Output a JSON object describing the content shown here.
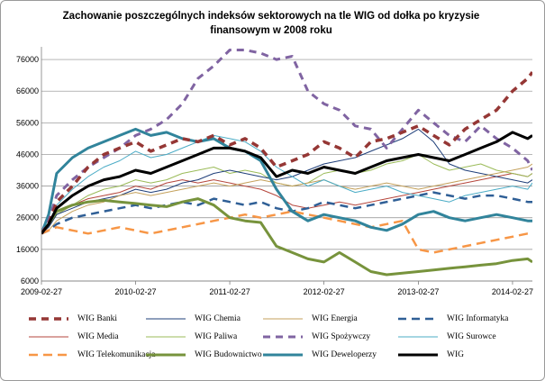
{
  "chart_data": {
    "type": "line",
    "title_lines": [
      "Zachowanie  poszczególnych  indeksów  sektorowych  na  tle WIG od dołka  po kryzysie",
      "finansowym  w 2008 roku"
    ],
    "xlabel": "",
    "ylabel": "",
    "x_ticks": [
      "2009-02-27",
      "2010-02-27",
      "2011-02-27",
      "2012-02-27",
      "2013-02-27",
      "2014-02-27"
    ],
    "x_range": [
      "2009-02-27",
      "2014-05-15"
    ],
    "y_ticks": [
      "6000",
      "16000",
      "26000",
      "36000",
      "46000",
      "56000",
      "66000",
      "76000"
    ],
    "ylim": [
      6000,
      80000
    ],
    "grid": "horizontal",
    "legend_position": "bottom",
    "x": [
      "2009-02-27",
      "2009-03-27",
      "2009-04-27",
      "2009-06-27",
      "2009-08-27",
      "2009-10-27",
      "2009-12-27",
      "2010-02-27",
      "2010-04-27",
      "2010-06-27",
      "2010-08-27",
      "2010-10-27",
      "2010-12-27",
      "2011-02-27",
      "2011-04-27",
      "2011-06-27",
      "2011-08-27",
      "2011-10-27",
      "2011-12-27",
      "2012-02-27",
      "2012-04-27",
      "2012-06-27",
      "2012-08-27",
      "2012-10-27",
      "2012-12-27",
      "2013-02-27",
      "2013-04-27",
      "2013-06-27",
      "2013-08-27",
      "2013-10-27",
      "2013-12-27",
      "2014-02-27",
      "2014-04-27",
      "2014-05-15"
    ],
    "series": [
      {
        "name": "WIG Banki",
        "color": "#953735",
        "width": 3.5,
        "dash": "8,6",
        "values": [
          21000,
          24000,
          31000,
          36000,
          42000,
          46000,
          48000,
          50000,
          47000,
          49000,
          51000,
          50000,
          52000,
          49000,
          51000,
          48000,
          42000,
          44000,
          46000,
          50000,
          48000,
          45000,
          50000,
          51000,
          53000,
          55000,
          52000,
          49000,
          54000,
          57000,
          60000,
          66000,
          70000,
          72000
        ]
      },
      {
        "name": "WIG Chemia",
        "color": "#1f3f7a",
        "width": 1,
        "dash": "",
        "values": [
          21000,
          23000,
          27000,
          29000,
          31000,
          32000,
          33000,
          35000,
          34000,
          35000,
          37000,
          38000,
          40000,
          41000,
          40000,
          39000,
          38000,
          39000,
          41000,
          43000,
          44000,
          45000,
          47000,
          49000,
          51000,
          54000,
          50000,
          43000,
          41000,
          40000,
          39000,
          38000,
          37000,
          38000
        ]
      },
      {
        "name": "WIG Energia",
        "color": "#c4a15c",
        "width": 1,
        "dash": "",
        "values": [
          21000,
          22000,
          25000,
          28000,
          30000,
          31000,
          33000,
          34000,
          33000,
          34000,
          35000,
          36000,
          37000,
          36000,
          37000,
          38000,
          37000,
          36000,
          37000,
          38000,
          36000,
          35000,
          36000,
          37000,
          36000,
          35000,
          36000,
          37000,
          38000,
          39000,
          40000,
          41000,
          42000,
          43000
        ]
      },
      {
        "name": "WIG Informatyka",
        "color": "#2f5f96",
        "width": 2.5,
        "dash": "9,6",
        "values": [
          21000,
          22000,
          24000,
          26000,
          27000,
          28000,
          29000,
          30000,
          29000,
          30000,
          31000,
          30000,
          32000,
          31000,
          30000,
          31000,
          29000,
          28000,
          29000,
          31000,
          30000,
          29000,
          30000,
          31000,
          32000,
          33000,
          34000,
          33000,
          32000,
          33000,
          33000,
          32000,
          31000,
          31000
        ]
      },
      {
        "name": "WIG Media",
        "color": "#b5463c",
        "width": 1,
        "dash": "",
        "values": [
          21000,
          23000,
          27000,
          30000,
          32000,
          33000,
          34000,
          36000,
          35000,
          37000,
          38000,
          37000,
          38000,
          37000,
          36000,
          35000,
          33000,
          30000,
          29000,
          30000,
          31000,
          30000,
          31000,
          32000,
          33000,
          34000,
          35000,
          36000,
          37000,
          38000,
          39000,
          40000,
          39000,
          40000
        ]
      },
      {
        "name": "WIG Paliwa",
        "color": "#9bbb59",
        "width": 1,
        "dash": "",
        "values": [
          21000,
          23000,
          27000,
          30000,
          33000,
          35000,
          36000,
          38000,
          37000,
          38000,
          40000,
          41000,
          42000,
          40000,
          41000,
          40000,
          37000,
          36000,
          37000,
          40000,
          41000,
          40000,
          41000,
          43000,
          44000,
          46000,
          43000,
          41000,
          42000,
          43000,
          41000,
          40000,
          39000,
          40000
        ]
      },
      {
        "name": "WIG Spożywczy",
        "color": "#8064a2",
        "width": 3,
        "dash": "8,6",
        "values": [
          21000,
          25000,
          33000,
          38000,
          42000,
          45000,
          48000,
          52000,
          54000,
          57000,
          62000,
          70000,
          74000,
          79000,
          79000,
          78000,
          76000,
          77000,
          66000,
          62000,
          60000,
          55000,
          54000,
          48000,
          54000,
          60000,
          56000,
          52000,
          50000,
          55000,
          51000,
          48000,
          44000,
          41000
        ]
      },
      {
        "name": "WIG Surowce",
        "color": "#4bacc6",
        "width": 1,
        "dash": "",
        "values": [
          21000,
          24000,
          30000,
          35000,
          39000,
          42000,
          44000,
          47000,
          45000,
          46000,
          48000,
          50000,
          52000,
          51000,
          50000,
          47000,
          42000,
          39000,
          36000,
          38000,
          36000,
          34000,
          35000,
          36000,
          34000,
          33000,
          32000,
          31000,
          33000,
          34000,
          35000,
          36000,
          35000,
          37000
        ]
      },
      {
        "name": "WIG Telekomunikacja",
        "color": "#f79646",
        "width": 2.5,
        "dash": "10,6",
        "values": [
          21000,
          22000,
          23000,
          22000,
          21000,
          22000,
          23000,
          22000,
          21000,
          22000,
          23000,
          24000,
          25000,
          26000,
          27000,
          26000,
          27000,
          28000,
          27000,
          26000,
          25000,
          24000,
          23000,
          24000,
          25000,
          16000,
          15000,
          16000,
          17000,
          18000,
          19000,
          20000,
          21000,
          21000
        ]
      },
      {
        "name": "WIG Budownictwo",
        "color": "#77933c",
        "width": 3,
        "dash": "",
        "values": [
          21000,
          24000,
          28000,
          30000,
          31000,
          31500,
          31000,
          30500,
          30000,
          29500,
          31000,
          32000,
          30000,
          26000,
          25000,
          24500,
          17000,
          15000,
          13000,
          12000,
          15000,
          12000,
          9000,
          8000,
          8500,
          9000,
          9500,
          10000,
          10500,
          11000,
          11500,
          12500,
          13000,
          12000
        ]
      },
      {
        "name": "WIG Deweloperzy",
        "color": "#31849b",
        "width": 3,
        "dash": "",
        "values": [
          21000,
          27000,
          40000,
          45000,
          48000,
          50000,
          52000,
          54000,
          52000,
          53000,
          51000,
          50000,
          51000,
          48000,
          47000,
          44000,
          35000,
          28000,
          25000,
          27000,
          26000,
          25000,
          23000,
          22000,
          24000,
          27000,
          28000,
          26000,
          25000,
          26000,
          27000,
          26000,
          25000,
          25000
        ]
      },
      {
        "name": "WIG",
        "color": "#000000",
        "width": 3,
        "dash": "",
        "values": [
          21000,
          24000,
          29000,
          33000,
          36000,
          38000,
          39000,
          41000,
          40000,
          42000,
          44000,
          46000,
          48000,
          48000,
          47000,
          45000,
          39000,
          41000,
          40000,
          42000,
          41000,
          40000,
          42000,
          44000,
          45000,
          46000,
          45000,
          44000,
          46000,
          48000,
          50000,
          53000,
          51000,
          52000
        ]
      }
    ]
  }
}
